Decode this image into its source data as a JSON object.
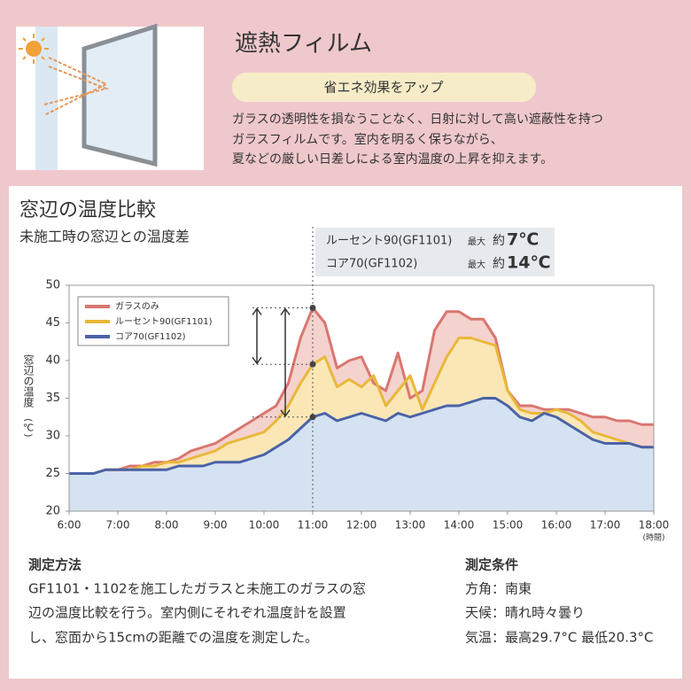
{
  "header": {
    "title": "遮熱フィルム",
    "badge": "省エネ効果をアップ",
    "description": [
      "ガラスの透明性を損なうことなく、日射に対して高い遮蔽性を持つ",
      "ガラスフィルムです。室内を明るく保ちながら、",
      "夏などの厳しい日差しによる室内温度の上昇を抑えます。"
    ]
  },
  "chart_data": {
    "type": "area",
    "title": "窓辺の温度比較",
    "subtitle": "未施工時の窓辺との温度差",
    "y_label": "窓辺の温度",
    "y_unit": "(℃)",
    "x_unit": "(時間)",
    "x": [
      6,
      6.25,
      6.5,
      6.75,
      7,
      7.25,
      7.5,
      7.75,
      8,
      8.25,
      8.5,
      8.75,
      9,
      9.25,
      9.5,
      9.75,
      10,
      10.25,
      10.5,
      10.75,
      11,
      11.25,
      11.5,
      11.75,
      12,
      12.25,
      12.5,
      12.75,
      13,
      13.25,
      13.5,
      13.75,
      14,
      14.25,
      14.5,
      14.75,
      15,
      15.25,
      15.5,
      15.75,
      16,
      16.25,
      16.5,
      16.75,
      17,
      17.25,
      17.5,
      17.75,
      18
    ],
    "series": [
      {
        "name": "ガラスのみ",
        "color": "#d9766f",
        "fill": "#f4d2ce",
        "values": [
          25,
          25,
          25,
          25.5,
          25.5,
          26,
          26,
          26.5,
          26.5,
          27,
          28,
          28.5,
          29,
          30,
          31,
          32,
          33,
          34,
          37,
          43,
          47,
          45,
          39,
          40,
          40.5,
          37,
          36,
          41,
          35,
          36,
          44,
          46.5,
          46.5,
          45.5,
          45.5,
          43,
          36,
          34,
          34,
          33.5,
          33.5,
          33.5,
          33,
          32.5,
          32.5,
          32,
          32,
          31.5,
          31.5
        ]
      },
      {
        "name": "ルーセント90(GF1101)",
        "color": "#e8b83a",
        "fill": "#fbe7b6",
        "values": [
          25,
          25,
          25,
          25.5,
          25.5,
          25.5,
          26,
          26,
          26.5,
          26.5,
          27,
          27.5,
          28,
          29,
          29.5,
          30,
          30.5,
          32,
          34,
          37,
          39.5,
          40.5,
          36.5,
          37.5,
          36.5,
          38,
          34,
          36,
          38,
          33.5,
          37,
          40.5,
          43,
          43,
          42.5,
          42,
          36,
          33.5,
          33,
          33,
          33.5,
          33,
          32,
          30.5,
          30,
          29.5,
          29,
          28.5,
          28.5
        ]
      },
      {
        "name": "コア70(GF1102)",
        "color": "#4a62a8",
        "fill": "#d5e2f1",
        "values": [
          25,
          25,
          25,
          25.5,
          25.5,
          25.5,
          25.5,
          25.5,
          25.5,
          26,
          26,
          26,
          26.5,
          26.5,
          26.5,
          27,
          27.5,
          28.5,
          29.5,
          31,
          32.5,
          33,
          32,
          32.5,
          33,
          32.5,
          32,
          33,
          32.5,
          33,
          33.5,
          34,
          34,
          34.5,
          35,
          35,
          34,
          32.5,
          32,
          33,
          32.5,
          31.5,
          30.5,
          29.5,
          29,
          29,
          29,
          28.5,
          28.5
        ]
      }
    ],
    "xlim": [
      6,
      18
    ],
    "xticks": [
      {
        "value": 6,
        "label": "6:00"
      },
      {
        "value": 7,
        "label": "7:00"
      },
      {
        "value": 8,
        "label": "8:00"
      },
      {
        "value": 9,
        "label": "9:00"
      },
      {
        "value": 10,
        "label": "10:00"
      },
      {
        "value": 11,
        "label": "11:00"
      },
      {
        "value": 12,
        "label": "12:00"
      },
      {
        "value": 13,
        "label": "13:00"
      },
      {
        "value": 14,
        "label": "14:00"
      },
      {
        "value": 15,
        "label": "15:00"
      },
      {
        "value": 16,
        "label": "16:00"
      },
      {
        "value": 17,
        "label": "17:00"
      },
      {
        "value": 18,
        "label": "18:00"
      }
    ],
    "ylim": [
      20,
      50
    ],
    "yticks": [
      20,
      25,
      30,
      35,
      40,
      45,
      50
    ],
    "legend": "upper left",
    "annotations": [
      {
        "label": "ルーセント90(GF1101)",
        "max": "最大",
        "approx": "約",
        "diff": "7℃"
      },
      {
        "label": "コア70(GF1102)",
        "max": "最大",
        "approx": "約",
        "diff": "14℃"
      }
    ]
  },
  "method": {
    "title": "測定方法",
    "lines": [
      "GF1101・1102を施工したガラスと未施工のガラスの窓",
      "辺の温度比較を行う。室内側にそれぞれ温度計を設置",
      "し、窓面から15cmの距離での温度を測定した。"
    ]
  },
  "conditions": {
    "title": "測定条件",
    "lines": [
      "方角：南東",
      "天候：晴れ時々曇り",
      "気温：最高29.7°C 最低20.3°C"
    ]
  }
}
